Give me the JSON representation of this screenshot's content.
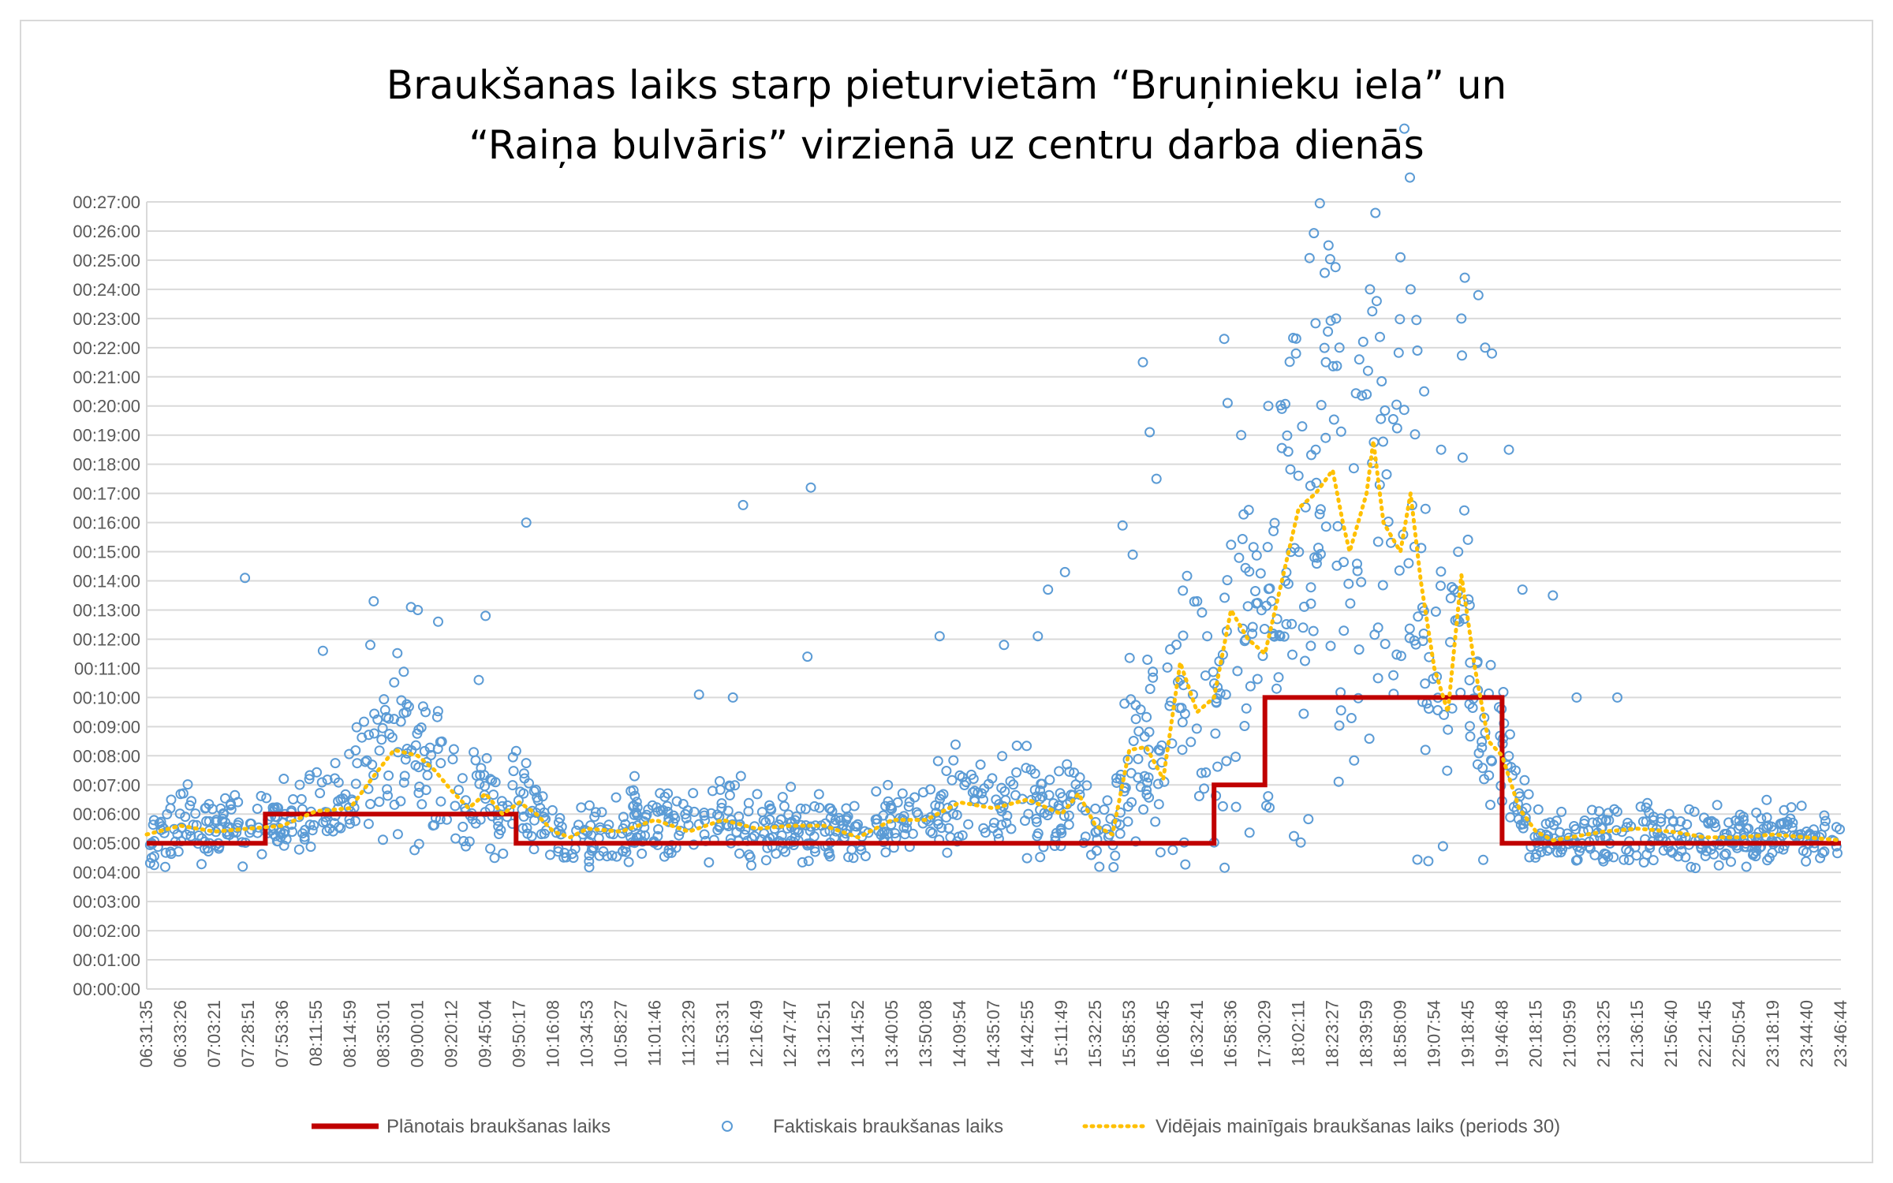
{
  "chart_data": {
    "type": "scatter",
    "title_lines": [
      "Braukšanas laiks starp pieturvietām “Bruņinieku iela” un",
      "“Raiņa bulvāris” virzienā uz centru darba dienās"
    ],
    "y_ticks": [
      "00:00:00",
      "00:01:00",
      "00:02:00",
      "00:03:00",
      "00:04:00",
      "00:05:00",
      "00:06:00",
      "00:07:00",
      "00:08:00",
      "00:09:00",
      "00:10:00",
      "00:11:00",
      "00:12:00",
      "00:13:00",
      "00:14:00",
      "00:15:00",
      "00:16:00",
      "00:17:00",
      "00:18:00",
      "00:19:00",
      "00:20:00",
      "00:21:00",
      "00:22:00",
      "00:23:00",
      "00:24:00",
      "00:25:00",
      "00:26:00",
      "00:27:00"
    ],
    "ylim_minutes": [
      0,
      27
    ],
    "x_ticks": [
      "06:31:35",
      "06:33:26",
      "07:03:21",
      "07:28:51",
      "07:53:36",
      "08:11:55",
      "08:14:59",
      "08:35:01",
      "09:00:01",
      "09:20:12",
      "09:45:04",
      "09:50:17",
      "10:16:08",
      "10:34:53",
      "10:58:27",
      "11:01:46",
      "11:23:29",
      "11:53:31",
      "12:16:49",
      "12:47:47",
      "13:12:51",
      "13:14:52",
      "13:40:05",
      "13:50:08",
      "14:09:54",
      "14:35:07",
      "14:42:55",
      "15:11:49",
      "15:32:25",
      "15:58:53",
      "16:08:45",
      "16:32:41",
      "16:58:36",
      "17:30:29",
      "18:02:11",
      "18:23:27",
      "18:39:59",
      "18:58:09",
      "19:07:54",
      "19:18:45",
      "19:46:48",
      "20:18:15",
      "21:09:59",
      "21:33:25",
      "21:36:15",
      "21:56:40",
      "22:21:45",
      "22:50:54",
      "23:18:19",
      "23:44:40",
      "23:46:44"
    ],
    "grid": true,
    "legend_position": "bottom",
    "series": [
      {
        "name": "Plānotais braukšanas laiks",
        "kind": "step-line",
        "color": "#c00000",
        "steps": [
          {
            "x_from": 0,
            "x_to": 3.5,
            "minutes": 5
          },
          {
            "x_from": 3.5,
            "x_to": 10.9,
            "minutes": 6
          },
          {
            "x_from": 10.9,
            "x_to": 31.5,
            "minutes": 5
          },
          {
            "x_from": 31.5,
            "x_to": 33.0,
            "minutes": 7
          },
          {
            "x_from": 33.0,
            "x_to": 40.0,
            "minutes": 10
          },
          {
            "x_from": 40.0,
            "x_to": 50,
            "minutes": 5
          }
        ]
      },
      {
        "name": "Faktiskais braukšanas laiks",
        "kind": "scatter",
        "color": "#5b9bd5",
        "outliers": [
          [
            2.9,
            14.1
          ],
          [
            5.2,
            11.6
          ],
          [
            6.6,
            11.8
          ],
          [
            6.7,
            13.3
          ],
          [
            7.8,
            13.1
          ],
          [
            8.0,
            13.0
          ],
          [
            8.6,
            12.6
          ],
          [
            9.8,
            10.6
          ],
          [
            10.0,
            12.8
          ],
          [
            11.2,
            16.0
          ],
          [
            16.3,
            10.1
          ],
          [
            17.3,
            10.0
          ],
          [
            17.6,
            16.6
          ],
          [
            19.5,
            11.4
          ],
          [
            19.6,
            17.2
          ],
          [
            23.4,
            12.1
          ],
          [
            25.3,
            11.8
          ],
          [
            26.3,
            12.1
          ],
          [
            26.6,
            13.7
          ],
          [
            27.1,
            14.3
          ],
          [
            28.8,
            15.9
          ],
          [
            29.1,
            14.9
          ],
          [
            29.4,
            21.5
          ],
          [
            29.6,
            19.1
          ],
          [
            29.8,
            17.5
          ],
          [
            31.0,
            13.3
          ],
          [
            31.3,
            12.1
          ],
          [
            31.8,
            22.3
          ],
          [
            31.9,
            20.1
          ],
          [
            32.3,
            19.0
          ],
          [
            33.1,
            20.0
          ],
          [
            33.5,
            19.9
          ],
          [
            34.1,
            19.3
          ],
          [
            34.5,
            18.5
          ],
          [
            34.8,
            21.5
          ],
          [
            35.1,
            23.0
          ],
          [
            35.2,
            22.0
          ],
          [
            35.9,
            22.2
          ],
          [
            36.0,
            20.4
          ],
          [
            36.1,
            24.0
          ],
          [
            36.3,
            23.6
          ],
          [
            37.0,
            25.1
          ],
          [
            37.3,
            24.0
          ],
          [
            37.5,
            21.9
          ],
          [
            37.7,
            20.5
          ],
          [
            38.2,
            18.5
          ],
          [
            38.8,
            23.0
          ],
          [
            38.9,
            24.4
          ],
          [
            39.3,
            23.8
          ],
          [
            39.5,
            22.0
          ],
          [
            39.7,
            21.8
          ],
          [
            40.2,
            18.5
          ],
          [
            40.6,
            13.7
          ],
          [
            41.5,
            13.5
          ],
          [
            42.2,
            10.0
          ],
          [
            43.4,
            10.0
          ]
        ]
      },
      {
        "name": "Vidējais mainīgais braukšanas laiks (periods 30)",
        "kind": "dotted-line",
        "color": "#ffc000",
        "points": [
          [
            0,
            5.3
          ],
          [
            1.0,
            5.6
          ],
          [
            2.0,
            5.4
          ],
          [
            3.0,
            5.5
          ],
          [
            4.0,
            5.6
          ],
          [
            5.0,
            6.1
          ],
          [
            6.0,
            6.2
          ],
          [
            6.7,
            7.3
          ],
          [
            7.3,
            8.2
          ],
          [
            8.0,
            8.0
          ],
          [
            8.5,
            7.5
          ],
          [
            9.0,
            6.8
          ],
          [
            9.5,
            6.2
          ],
          [
            10.0,
            6.7
          ],
          [
            10.5,
            6.0
          ],
          [
            11.0,
            6.4
          ],
          [
            11.5,
            6.0
          ],
          [
            12.0,
            5.4
          ],
          [
            12.5,
            5.2
          ],
          [
            13.0,
            5.5
          ],
          [
            14.0,
            5.4
          ],
          [
            15.0,
            5.8
          ],
          [
            16.0,
            5.4
          ],
          [
            17.0,
            5.8
          ],
          [
            18.0,
            5.5
          ],
          [
            19.0,
            5.6
          ],
          [
            20.0,
            5.6
          ],
          [
            21.0,
            5.2
          ],
          [
            22.0,
            5.8
          ],
          [
            23.0,
            5.8
          ],
          [
            24.0,
            6.4
          ],
          [
            25.0,
            6.2
          ],
          [
            26.0,
            6.5
          ],
          [
            27.0,
            6.0
          ],
          [
            27.5,
            6.7
          ],
          [
            28.0,
            5.6
          ],
          [
            28.5,
            5.3
          ],
          [
            29.0,
            8.2
          ],
          [
            29.5,
            8.3
          ],
          [
            30.0,
            7.2
          ],
          [
            30.5,
            11.2
          ],
          [
            31.0,
            9.5
          ],
          [
            31.5,
            10.0
          ],
          [
            32.0,
            13.0
          ],
          [
            32.5,
            12.0
          ],
          [
            33.0,
            11.5
          ],
          [
            33.5,
            14.0
          ],
          [
            34.0,
            16.5
          ],
          [
            34.5,
            17.0
          ],
          [
            35.0,
            17.8
          ],
          [
            35.3,
            16.0
          ],
          [
            35.5,
            15.0
          ],
          [
            36.0,
            17.0
          ],
          [
            36.2,
            18.8
          ],
          [
            36.5,
            16.0
          ],
          [
            37.0,
            15.0
          ],
          [
            37.3,
            17.0
          ],
          [
            37.6,
            14.0
          ],
          [
            38.0,
            11.0
          ],
          [
            38.4,
            9.5
          ],
          [
            38.8,
            14.2
          ],
          [
            39.2,
            11.0
          ],
          [
            39.6,
            8.5
          ],
          [
            40.0,
            8.0
          ],
          [
            40.5,
            6.2
          ],
          [
            41.0,
            5.4
          ],
          [
            41.5,
            5.1
          ],
          [
            42.0,
            5.2
          ],
          [
            43.0,
            5.4
          ],
          [
            44.0,
            5.5
          ],
          [
            45.0,
            5.4
          ],
          [
            46.0,
            5.2
          ],
          [
            47.0,
            5.2
          ],
          [
            48.0,
            5.3
          ],
          [
            49.0,
            5.2
          ],
          [
            50.0,
            5.1
          ]
        ]
      }
    ],
    "legend": [
      {
        "label": "Plānotais braukšanas laiks",
        "style": "line",
        "color": "#c00000"
      },
      {
        "label": "Faktiskais braukšanas laiks",
        "style": "circle",
        "color": "#5b9bd5"
      },
      {
        "label": "Vidējais mainīgais braukšanas laiks (periods 30)",
        "style": "dotted",
        "color": "#ffc000"
      }
    ]
  }
}
